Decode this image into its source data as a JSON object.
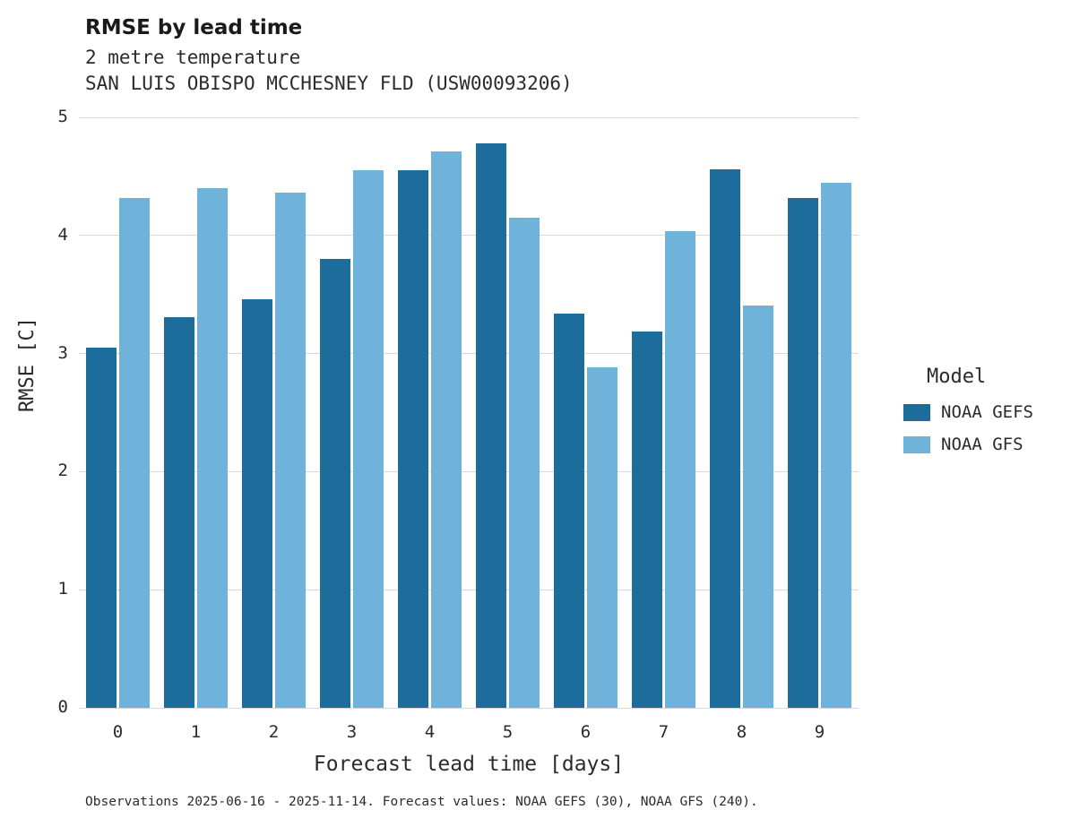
{
  "chart_data": {
    "type": "bar",
    "title": "RMSE by lead time",
    "subtitle_line1": "2 metre temperature",
    "subtitle_line2": "SAN LUIS OBISPO MCCHESNEY FLD (USW00093206)",
    "xlabel": "Forecast lead time [days]",
    "ylabel": "RMSE [C]",
    "ylim": [
      0,
      5
    ],
    "yticks": [
      0,
      1,
      2,
      3,
      4,
      5
    ],
    "grid": "horizontal",
    "legend_position": "right",
    "legend_title": "Model",
    "categories": [
      "0",
      "1",
      "2",
      "3",
      "4",
      "5",
      "6",
      "7",
      "8",
      "9"
    ],
    "series": [
      {
        "name": "NOAA GEFS",
        "color": "#1c6c9c",
        "values": [
          3.05,
          3.31,
          3.46,
          3.8,
          4.55,
          4.78,
          3.34,
          3.19,
          4.56,
          4.32
        ]
      },
      {
        "name": "NOAA GFS",
        "color": "#6fb2da",
        "values": [
          4.32,
          4.4,
          4.36,
          4.55,
          4.71,
          4.15,
          2.88,
          4.04,
          3.41,
          4.45
        ]
      }
    ],
    "caption": "Observations 2025-06-16 - 2025-11-14. Forecast values: NOAA GEFS (30), NOAA GFS (240)."
  }
}
